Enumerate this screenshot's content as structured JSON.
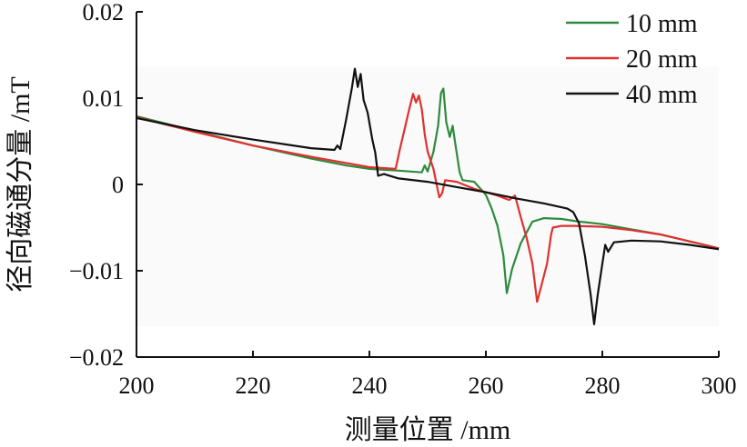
{
  "chart_data": {
    "type": "line",
    "xlabel": "测量位置 /mm",
    "ylabel": "径向磁通分量 /mT",
    "xlim": [
      200,
      300
    ],
    "ylim": [
      -0.02,
      0.02
    ],
    "x_ticks": [
      200,
      220,
      240,
      260,
      280,
      300
    ],
    "x_tick_labels": [
      "200",
      "220",
      "240",
      "260",
      "280",
      "300"
    ],
    "y_ticks": [
      -0.02,
      -0.01,
      0,
      0.01,
      0.02
    ],
    "y_tick_labels": [
      "−0.02",
      "−0.01",
      "0",
      "0.01",
      "0.02"
    ],
    "grid": false,
    "legend_position": "top-right",
    "series": [
      {
        "name": "10 mm",
        "color": "#2e8b3e",
        "points": [
          [
            200,
            0.0079
          ],
          [
            210,
            0.0062
          ],
          [
            220,
            0.0045
          ],
          [
            230,
            0.003
          ],
          [
            236,
            0.0022
          ],
          [
            240,
            0.0018
          ],
          [
            245,
            0.0016
          ],
          [
            249,
            0.0014
          ],
          [
            249.5,
            0.0022
          ],
          [
            250,
            0.0015
          ],
          [
            251,
            0.0038
          ],
          [
            251.8,
            0.0068
          ],
          [
            252.3,
            0.0106
          ],
          [
            252.7,
            0.0111
          ],
          [
            253.2,
            0.0072
          ],
          [
            253.8,
            0.0055
          ],
          [
            254.3,
            0.0068
          ],
          [
            254.8,
            0.0045
          ],
          [
            255.5,
            0.0014
          ],
          [
            256,
            0.0005
          ],
          [
            258,
            0.0003
          ],
          [
            260,
            -0.0012
          ],
          [
            261,
            -0.0028
          ],
          [
            262,
            -0.0048
          ],
          [
            263,
            -0.0082
          ],
          [
            263.6,
            -0.0126
          ],
          [
            264.5,
            -0.0098
          ],
          [
            266,
            -0.0068
          ],
          [
            268,
            -0.0043
          ],
          [
            270,
            -0.0039
          ],
          [
            273,
            -0.004
          ],
          [
            276,
            -0.0043
          ],
          [
            280,
            -0.0046
          ],
          [
            285,
            -0.0052
          ],
          [
            290,
            -0.0058
          ],
          [
            295,
            -0.0066
          ],
          [
            300,
            -0.0074
          ]
        ]
      },
      {
        "name": "20 mm",
        "color": "#e03030",
        "points": [
          [
            200,
            0.0078
          ],
          [
            210,
            0.0061
          ],
          [
            220,
            0.0045
          ],
          [
            230,
            0.0032
          ],
          [
            240,
            0.002
          ],
          [
            244.5,
            0.0018
          ],
          [
            245.2,
            0.004
          ],
          [
            246,
            0.0063
          ],
          [
            246.8,
            0.0086
          ],
          [
            247.5,
            0.0105
          ],
          [
            248,
            0.0095
          ],
          [
            248.5,
            0.0103
          ],
          [
            249,
            0.0087
          ],
          [
            249.5,
            0.0058
          ],
          [
            250,
            0.0038
          ],
          [
            251,
            0.0018
          ],
          [
            252,
            -0.0015
          ],
          [
            252.5,
            -0.001
          ],
          [
            253,
            0.0005
          ],
          [
            255,
            0.0003
          ],
          [
            258,
            -0.0005
          ],
          [
            260,
            -0.0009
          ],
          [
            262,
            -0.0013
          ],
          [
            264,
            -0.0018
          ],
          [
            265,
            -0.0013
          ],
          [
            266,
            -0.0038
          ],
          [
            267,
            -0.0062
          ],
          [
            268,
            -0.0092
          ],
          [
            268.8,
            -0.0136
          ],
          [
            269.5,
            -0.0118
          ],
          [
            270.5,
            -0.0092
          ],
          [
            271.2,
            -0.0058
          ],
          [
            271.5,
            -0.005
          ],
          [
            273,
            -0.0048
          ],
          [
            275,
            -0.0048
          ],
          [
            280,
            -0.0049
          ],
          [
            285,
            -0.0053
          ],
          [
            290,
            -0.0058
          ],
          [
            295,
            -0.0066
          ],
          [
            300,
            -0.0074
          ]
        ]
      },
      {
        "name": "40 mm",
        "color": "#111111",
        "points": [
          [
            200,
            0.0077
          ],
          [
            210,
            0.0063
          ],
          [
            220,
            0.0052
          ],
          [
            230,
            0.0042
          ],
          [
            234,
            0.004
          ],
          [
            234.5,
            0.0045
          ],
          [
            235,
            0.0041
          ],
          [
            236,
            0.0075
          ],
          [
            237,
            0.0112
          ],
          [
            237.5,
            0.0134
          ],
          [
            238,
            0.0113
          ],
          [
            238.5,
            0.0128
          ],
          [
            239,
            0.0098
          ],
          [
            239.7,
            0.0083
          ],
          [
            240.5,
            0.0052
          ],
          [
            241,
            0.0037
          ],
          [
            241.5,
            0.001
          ],
          [
            242.5,
            0.0012
          ],
          [
            245,
            0.0007
          ],
          [
            250,
            0.0003
          ],
          [
            255,
            -0.0003
          ],
          [
            260,
            -0.0009
          ],
          [
            265,
            -0.0016
          ],
          [
            270,
            -0.0022
          ],
          [
            274,
            -0.0028
          ],
          [
            275,
            -0.0032
          ],
          [
            276,
            -0.0045
          ],
          [
            277,
            -0.0082
          ],
          [
            278,
            -0.0128
          ],
          [
            278.6,
            -0.0162
          ],
          [
            279.2,
            -0.0128
          ],
          [
            280,
            -0.0092
          ],
          [
            280.5,
            -0.007
          ],
          [
            281,
            -0.0078
          ],
          [
            282,
            -0.0067
          ],
          [
            285,
            -0.0065
          ],
          [
            290,
            -0.0066
          ],
          [
            295,
            -0.007
          ],
          [
            300,
            -0.0075
          ]
        ]
      }
    ]
  }
}
